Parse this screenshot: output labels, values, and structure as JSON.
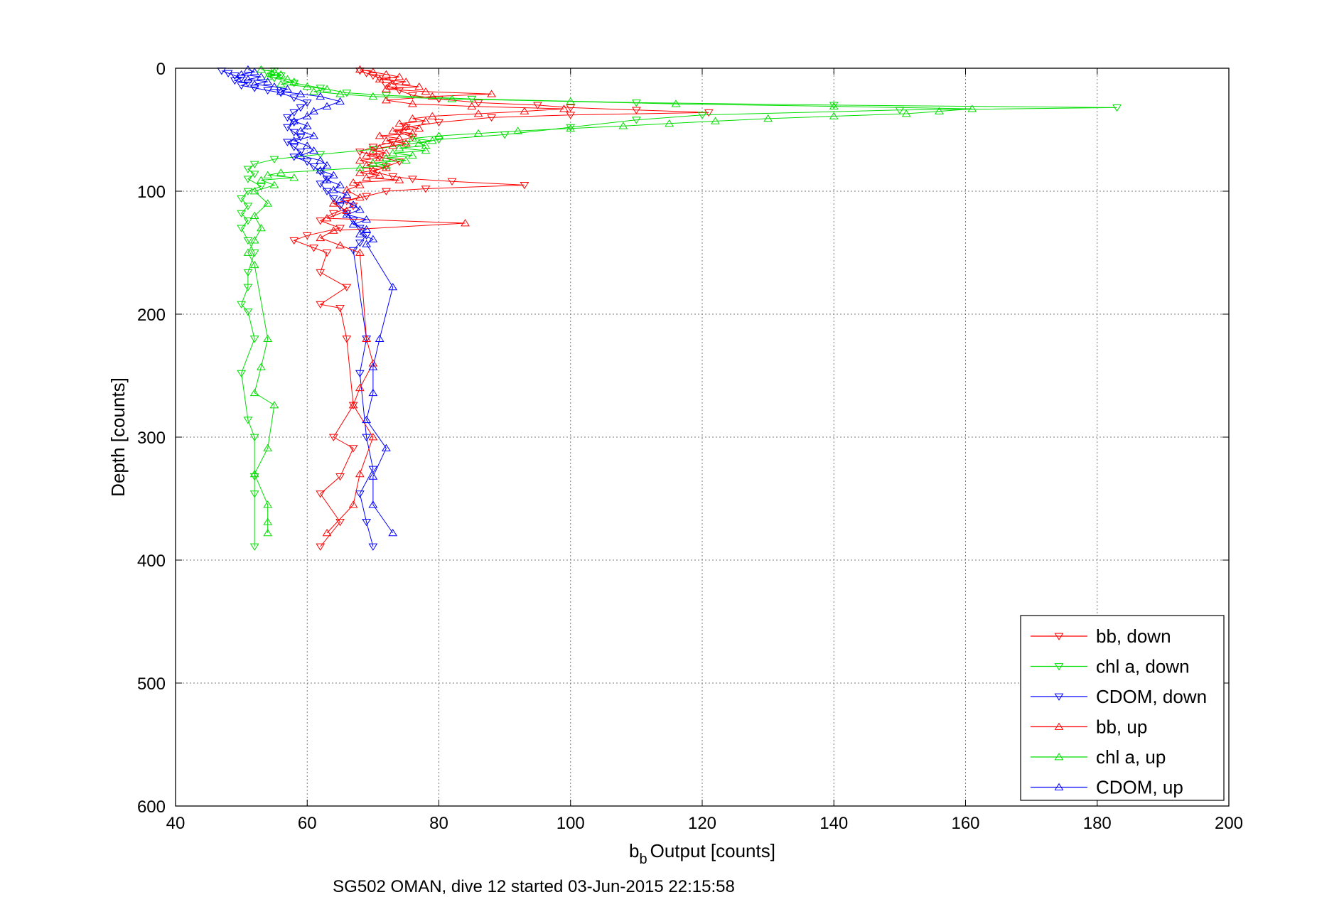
{
  "chart_data": {
    "type": "scatter",
    "title": "",
    "xlabel": "Output [counts]",
    "xlabel_prefix": "b",
    "xlabel_sub": "b",
    "ylabel": "Depth [counts]",
    "caption": "SG502 OMAN, dive 12 started 03-Jun-2015 22:15:58",
    "xlim": [
      40,
      200
    ],
    "ylim": [
      0,
      600
    ],
    "y_reversed": true,
    "grid": true,
    "legend_position": "bottom-right",
    "x_ticks": [
      "40",
      "60",
      "80",
      "100",
      "120",
      "140",
      "160",
      "180",
      "200"
    ],
    "y_ticks": [
      "0",
      "100",
      "200",
      "300",
      "400",
      "500",
      "600"
    ],
    "series": [
      {
        "name": "bb, down",
        "color": "#ff0000",
        "marker": "triangle-down",
        "points": [
          [
            68,
            2
          ],
          [
            69,
            4
          ],
          [
            70,
            6
          ],
          [
            71,
            8
          ],
          [
            73,
            10
          ],
          [
            72,
            14
          ],
          [
            74,
            18
          ],
          [
            76,
            22
          ],
          [
            80,
            25
          ],
          [
            86,
            28
          ],
          [
            95,
            30
          ],
          [
            100,
            32
          ],
          [
            110,
            34
          ],
          [
            121,
            36
          ],
          [
            100,
            38
          ],
          [
            88,
            40
          ],
          [
            80,
            44
          ],
          [
            75,
            48
          ],
          [
            74,
            52
          ],
          [
            76,
            56
          ],
          [
            73,
            60
          ],
          [
            70,
            64
          ],
          [
            68,
            68
          ],
          [
            71,
            72
          ],
          [
            74,
            76
          ],
          [
            72,
            80
          ],
          [
            70,
            84
          ],
          [
            73,
            88
          ],
          [
            76,
            90
          ],
          [
            82,
            92
          ],
          [
            93,
            95
          ],
          [
            78,
            98
          ],
          [
            72,
            100
          ],
          [
            69,
            104
          ],
          [
            66,
            108
          ],
          [
            67,
            112
          ],
          [
            64,
            118
          ],
          [
            62,
            124
          ],
          [
            65,
            130
          ],
          [
            60,
            136
          ],
          [
            58,
            140
          ],
          [
            61,
            146
          ],
          [
            63,
            150
          ],
          [
            62,
            166
          ],
          [
            66,
            178
          ],
          [
            62,
            192
          ],
          [
            65,
            195
          ],
          [
            66,
            220
          ],
          [
            67,
            274
          ],
          [
            64,
            300
          ],
          [
            67,
            309
          ],
          [
            65,
            332
          ],
          [
            62,
            346
          ],
          [
            65,
            369
          ],
          [
            62,
            389
          ]
        ]
      },
      {
        "name": "chl a, down",
        "color": "#00dd00",
        "marker": "triangle-down",
        "points": [
          [
            55,
            2
          ],
          [
            54,
            4
          ],
          [
            56,
            6
          ],
          [
            55,
            8
          ],
          [
            58,
            12
          ],
          [
            62,
            16
          ],
          [
            66,
            20
          ],
          [
            72,
            22
          ],
          [
            85,
            25
          ],
          [
            110,
            28
          ],
          [
            140,
            30
          ],
          [
            183,
            32
          ],
          [
            150,
            34
          ],
          [
            120,
            38
          ],
          [
            110,
            42
          ],
          [
            100,
            48
          ],
          [
            90,
            54
          ],
          [
            80,
            58
          ],
          [
            75,
            62
          ],
          [
            70,
            66
          ],
          [
            62,
            70
          ],
          [
            55,
            74
          ],
          [
            52,
            78
          ],
          [
            51,
            82
          ],
          [
            52,
            86
          ],
          [
            51,
            90
          ],
          [
            53,
            96
          ],
          [
            51,
            100
          ],
          [
            50,
            106
          ],
          [
            51,
            112
          ],
          [
            50,
            118
          ],
          [
            51,
            124
          ],
          [
            50,
            130
          ],
          [
            51,
            140
          ],
          [
            52,
            150
          ],
          [
            51,
            166
          ],
          [
            51,
            178
          ],
          [
            50,
            192
          ],
          [
            51,
            198
          ],
          [
            52,
            220
          ],
          [
            50,
            248
          ],
          [
            51,
            286
          ],
          [
            52,
            300
          ],
          [
            52,
            332
          ],
          [
            52,
            346
          ],
          [
            52,
            389
          ]
        ]
      },
      {
        "name": "CDOM, down",
        "color": "#0000ff",
        "marker": "triangle-down",
        "points": [
          [
            47,
            2
          ],
          [
            48,
            4
          ],
          [
            49,
            6
          ],
          [
            50,
            8
          ],
          [
            49,
            10
          ],
          [
            51,
            12
          ],
          [
            50,
            14
          ],
          [
            52,
            16
          ],
          [
            54,
            18
          ],
          [
            56,
            20
          ],
          [
            58,
            24
          ],
          [
            60,
            28
          ],
          [
            59,
            32
          ],
          [
            58,
            36
          ],
          [
            57,
            40
          ],
          [
            58,
            44
          ],
          [
            57,
            48
          ],
          [
            58,
            52
          ],
          [
            59,
            56
          ],
          [
            57,
            60
          ],
          [
            58,
            64
          ],
          [
            59,
            68
          ],
          [
            58,
            72
          ],
          [
            60,
            76
          ],
          [
            61,
            80
          ],
          [
            62,
            84
          ],
          [
            63,
            90
          ],
          [
            62,
            94
          ],
          [
            63,
            100
          ],
          [
            64,
            106
          ],
          [
            65,
            112
          ],
          [
            66,
            118
          ],
          [
            67,
            124
          ],
          [
            68,
            130
          ],
          [
            69,
            136
          ],
          [
            68,
            142
          ],
          [
            67,
            148
          ],
          [
            69,
            220
          ],
          [
            68,
            248
          ],
          [
            69,
            300
          ],
          [
            70,
            326
          ],
          [
            68,
            346
          ],
          [
            69,
            369
          ],
          [
            70,
            389
          ]
        ]
      },
      {
        "name": "bb, up",
        "color": "#ff0000",
        "marker": "triangle-up",
        "points": [
          [
            68,
            1
          ],
          [
            70,
            3
          ],
          [
            72,
            5
          ],
          [
            74,
            7
          ],
          [
            71,
            9
          ],
          [
            75,
            11
          ],
          [
            73,
            13
          ],
          [
            77,
            15
          ],
          [
            72,
            17
          ],
          [
            78,
            19
          ],
          [
            88,
            21
          ],
          [
            79,
            23
          ],
          [
            72,
            26
          ],
          [
            76,
            29
          ],
          [
            85,
            31
          ],
          [
            99,
            33
          ],
          [
            93,
            35
          ],
          [
            86,
            37
          ],
          [
            79,
            39
          ],
          [
            76,
            41
          ],
          [
            78,
            43
          ],
          [
            74,
            45
          ],
          [
            75,
            47
          ],
          [
            77,
            49
          ],
          [
            73,
            51
          ],
          [
            76,
            53
          ],
          [
            71,
            55
          ],
          [
            74,
            57
          ],
          [
            72,
            59
          ],
          [
            75,
            61
          ],
          [
            73,
            63
          ],
          [
            71,
            65
          ],
          [
            70,
            67
          ],
          [
            72,
            69
          ],
          [
            69,
            71
          ],
          [
            71,
            73
          ],
          [
            68,
            75
          ],
          [
            70,
            77
          ],
          [
            69,
            79
          ],
          [
            72,
            81
          ],
          [
            70,
            83
          ],
          [
            68,
            85
          ],
          [
            71,
            87
          ],
          [
            69,
            89
          ],
          [
            74,
            91
          ],
          [
            67,
            93
          ],
          [
            68,
            95
          ],
          [
            66,
            99
          ],
          [
            68,
            105
          ],
          [
            64,
            110
          ],
          [
            66,
            116
          ],
          [
            63,
            122
          ],
          [
            84,
            126
          ],
          [
            64,
            132
          ],
          [
            62,
            138
          ],
          [
            65,
            144
          ],
          [
            68,
            150
          ],
          [
            69,
            220
          ],
          [
            70,
            240
          ],
          [
            68,
            260
          ],
          [
            67,
            274
          ],
          [
            70,
            300
          ],
          [
            68,
            330
          ],
          [
            67,
            355
          ],
          [
            63,
            378
          ]
        ]
      },
      {
        "name": "chl a, up",
        "color": "#00dd00",
        "marker": "triangle-up",
        "points": [
          [
            53,
            1
          ],
          [
            55,
            3
          ],
          [
            56,
            5
          ],
          [
            54,
            7
          ],
          [
            57,
            9
          ],
          [
            58,
            11
          ],
          [
            56,
            13
          ],
          [
            60,
            15
          ],
          [
            63,
            17
          ],
          [
            61,
            19
          ],
          [
            65,
            21
          ],
          [
            70,
            23
          ],
          [
            82,
            25
          ],
          [
            100,
            27
          ],
          [
            116,
            29
          ],
          [
            140,
            31
          ],
          [
            161,
            33
          ],
          [
            156,
            35
          ],
          [
            151,
            37
          ],
          [
            140,
            39
          ],
          [
            130,
            41
          ],
          [
            122,
            43
          ],
          [
            115,
            45
          ],
          [
            108,
            47
          ],
          [
            100,
            49
          ],
          [
            92,
            51
          ],
          [
            86,
            53
          ],
          [
            80,
            55
          ],
          [
            76,
            57
          ],
          [
            79,
            59
          ],
          [
            77,
            61
          ],
          [
            78,
            63
          ],
          [
            74,
            65
          ],
          [
            78,
            67
          ],
          [
            73,
            69
          ],
          [
            76,
            71
          ],
          [
            72,
            73
          ],
          [
            75,
            75
          ],
          [
            70,
            77
          ],
          [
            72,
            79
          ],
          [
            68,
            81
          ],
          [
            62,
            83
          ],
          [
            56,
            85
          ],
          [
            54,
            87
          ],
          [
            58,
            89
          ],
          [
            53,
            91
          ],
          [
            55,
            95
          ],
          [
            52,
            100
          ],
          [
            54,
            110
          ],
          [
            52,
            120
          ],
          [
            53,
            130
          ],
          [
            52,
            140
          ],
          [
            51,
            150
          ],
          [
            52,
            160
          ],
          [
            54,
            220
          ],
          [
            53,
            243
          ],
          [
            52,
            264
          ],
          [
            55,
            274
          ],
          [
            54,
            309
          ],
          [
            52,
            330
          ],
          [
            54,
            355
          ],
          [
            54,
            369
          ],
          [
            54,
            378
          ]
        ]
      },
      {
        "name": "CDOM, up",
        "color": "#0000ff",
        "marker": "triangle-up",
        "points": [
          [
            51,
            1
          ],
          [
            52,
            3
          ],
          [
            50,
            5
          ],
          [
            53,
            7
          ],
          [
            51,
            9
          ],
          [
            54,
            11
          ],
          [
            52,
            13
          ],
          [
            55,
            15
          ],
          [
            57,
            17
          ],
          [
            56,
            19
          ],
          [
            59,
            21
          ],
          [
            62,
            23
          ],
          [
            65,
            27
          ],
          [
            63,
            31
          ],
          [
            61,
            35
          ],
          [
            60,
            39
          ],
          [
            58,
            43
          ],
          [
            60,
            47
          ],
          [
            59,
            51
          ],
          [
            61,
            55
          ],
          [
            58,
            59
          ],
          [
            60,
            63
          ],
          [
            61,
            67
          ],
          [
            59,
            71
          ],
          [
            62,
            75
          ],
          [
            63,
            79
          ],
          [
            62,
            83
          ],
          [
            64,
            87
          ],
          [
            63,
            91
          ],
          [
            65,
            95
          ],
          [
            64,
            99
          ],
          [
            66,
            103
          ],
          [
            65,
            107
          ],
          [
            67,
            111
          ],
          [
            68,
            115
          ],
          [
            66,
            119
          ],
          [
            69,
            123
          ],
          [
            67,
            127
          ],
          [
            69,
            131
          ],
          [
            68,
            135
          ],
          [
            70,
            139
          ],
          [
            69,
            143
          ],
          [
            73,
            178
          ],
          [
            71,
            220
          ],
          [
            70,
            243
          ],
          [
            70,
            264
          ],
          [
            69,
            286
          ],
          [
            72,
            309
          ],
          [
            70,
            332
          ],
          [
            70,
            355
          ],
          [
            73,
            378
          ]
        ]
      }
    ]
  }
}
